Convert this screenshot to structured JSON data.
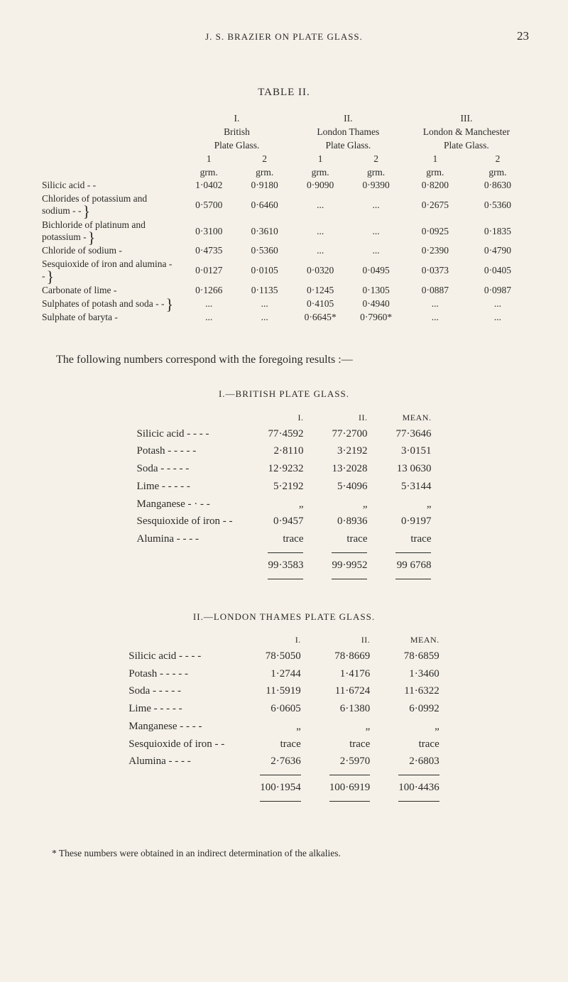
{
  "page": {
    "running_title": "J. S. BRAZIER ON PLATE GLASS.",
    "number": "23"
  },
  "table2": {
    "caption": "TABLE II.",
    "groups": [
      {
        "roman": "I.",
        "name1": "British",
        "name2": "Plate Glass."
      },
      {
        "roman": "II.",
        "name1": "London Thames",
        "name2": "Plate Glass."
      },
      {
        "roman": "III.",
        "name1": "London & Manchester",
        "name2": "Plate Glass."
      }
    ],
    "subcols": [
      "1",
      "2",
      "1",
      "2",
      "1",
      "2"
    ],
    "unit": "grm.",
    "rows": [
      {
        "label": "Silicic acid    -     -",
        "vals": [
          "1·0402",
          "0·9180",
          "0·9090",
          "0·9390",
          "0·8200",
          "0·8630"
        ]
      },
      {
        "label": "Chlorides of potassium and sodium -   -",
        "brace": true,
        "vals": [
          "0·5700",
          "0·6460",
          "...",
          "...",
          "0·2675",
          "0·5360"
        ]
      },
      {
        "label": "Bichloride of platinum and potassium   -",
        "brace": true,
        "vals": [
          "0·3100",
          "0·3610",
          "...",
          "...",
          "0·0925",
          "0·1835"
        ]
      },
      {
        "label": "Chloride of sodium  -",
        "vals": [
          "0·4735",
          "0·5360",
          "...",
          "...",
          "0·2390",
          "0·4790"
        ]
      },
      {
        "label": "Sesquioxide of iron and alumina   -    -",
        "brace": true,
        "vals": [
          "0·0127",
          "0·0105",
          "0·0320",
          "0·0495",
          "0·0373",
          "0·0405"
        ]
      },
      {
        "label": "Carbonate of lime  -",
        "vals": [
          "0·1266",
          "0·1135",
          "0·1245",
          "0·1305",
          "0·0887",
          "0·0987"
        ]
      },
      {
        "label": "Sulphates of potash and soda   -    -",
        "brace": true,
        "vals": [
          "...",
          "...",
          "0·4105",
          "0·4940",
          "...",
          "..."
        ]
      },
      {
        "label": "Sulphate of baryta  -",
        "vals": [
          "...",
          "...",
          "0·6645*",
          "0·7960*",
          "...",
          "..."
        ]
      }
    ]
  },
  "lead": "The following numbers correspond with the foregoing results :—",
  "sec1": {
    "heading": "I.—BRITISH PLATE GLASS.",
    "cols": [
      "I.",
      "II.",
      "MEAN."
    ],
    "rows": [
      {
        "label": "Silicic acid    -    -    -    -",
        "vals": [
          "77·4592",
          "77·2700",
          "77·3646"
        ]
      },
      {
        "label": "Potash   -    -    -    -    -",
        "vals": [
          "2·8110",
          "3·2192",
          "3·0151"
        ]
      },
      {
        "label": "Soda     -    -    -    -    -",
        "vals": [
          "12·9232",
          "13·2028",
          "13 0630"
        ]
      },
      {
        "label": "Lime     -    -    -    -    -",
        "vals": [
          "5·2192",
          "5·4096",
          "5·3144"
        ]
      },
      {
        "label": "Manganese    -    ·    -    -",
        "vals": [
          "„",
          "„",
          "„"
        ]
      },
      {
        "label": "Sesquioxide of iron    -    -",
        "vals": [
          "0·9457",
          "0·8936",
          "0·9197"
        ]
      },
      {
        "label": "Alumina    -    -    -    -",
        "vals": [
          "trace",
          "trace",
          "trace"
        ]
      }
    ],
    "totals": [
      "99·3583",
      "99·9952",
      "99 6768"
    ]
  },
  "sec2": {
    "heading": "II.—LONDON THAMES PLATE GLASS.",
    "cols": [
      "I.",
      "II.",
      "MEAN."
    ],
    "rows": [
      {
        "label": "Silicic acid    -    -    -    -",
        "vals": [
          "78·5050",
          "78·8669",
          "78·6859"
        ]
      },
      {
        "label": "Potash   -    -    -    -    -",
        "vals": [
          "1·2744",
          "1·4176",
          "1·3460"
        ]
      },
      {
        "label": "Soda     -    -    -    -    -",
        "vals": [
          "11·5919",
          "11·6724",
          "11·6322"
        ]
      },
      {
        "label": "Lime     -    -    -    -    -",
        "vals": [
          "6·0605",
          "6·1380",
          "6·0992"
        ]
      },
      {
        "label": "Manganese    -    -    -    -",
        "vals": [
          "„",
          "„",
          "„"
        ]
      },
      {
        "label": "Sesquioxide of iron    -    -",
        "vals": [
          "trace",
          "trace",
          "trace"
        ]
      },
      {
        "label": "Alumina    -    -    -    -",
        "vals": [
          "2·7636",
          "2·5970",
          "2·6803"
        ]
      }
    ],
    "totals": [
      "100·1954",
      "100·6919",
      "100·4436"
    ]
  },
  "footnote": "* These numbers were obtained in an indirect determination of the alkalies."
}
